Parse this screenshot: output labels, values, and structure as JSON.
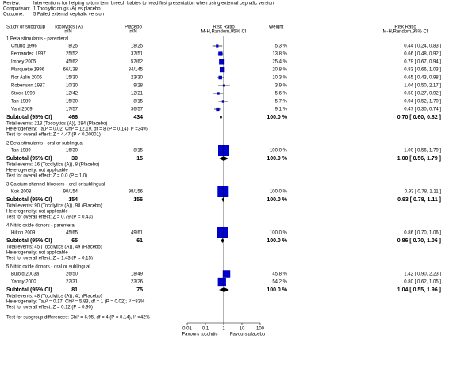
{
  "header": {
    "review_label": "Review:",
    "review": "Interventions for helping to turn term breech babies to head first presentation when using external cephalic version",
    "comparison_label": "Comparison:",
    "comparison": "1 Tocolytic drugs (A) vs placebo",
    "outcome_label": "Outcome:",
    "outcome": "5 Failed external cephalic version"
  },
  "columns": {
    "study": "Study or subgroup",
    "treatment": "Tocolytics (A)",
    "treatment_sub": "n/N",
    "control": "Placebo",
    "control_sub": "n/N",
    "plot": "Risk Ratio",
    "plot_sub": "M-H,Random,95% CI",
    "weight": "Weight",
    "effect": "Risk Ratio",
    "effect_sub": "M-H,Random,95% CI"
  },
  "groups": [
    {
      "label": "1 Beta stimulants - parenteral",
      "studies": [
        {
          "name": "Chung 1996",
          "treatment": "8/25",
          "control": "18/25",
          "weight": 5.3,
          "weight_label": "5.3 %",
          "rr": 0.44,
          "ci": [
            0.24,
            0.83
          ],
          "effect_label": "0.44 [ 0.24, 0.83 ]"
        },
        {
          "name": "Fernandez 1997",
          "treatment": "25/52",
          "control": "37/51",
          "weight": 13.8,
          "weight_label": "13.8 %",
          "rr": 0.66,
          "ci": [
            0.48,
            0.92
          ],
          "effect_label": "0.66 [ 0.48, 0.92 ]"
        },
        {
          "name": "Impey 2005",
          "treatment": "45/62",
          "control": "57/62",
          "weight": 25.4,
          "weight_label": "25.4 %",
          "rr": 0.79,
          "ci": [
            0.67,
            0.94
          ],
          "effect_label": "0.79 [ 0.67, 0.94 ]"
        },
        {
          "name": "Marquette 1996",
          "treatment": "66/138",
          "control": "84/145",
          "weight": 20.8,
          "weight_label": "20.8 %",
          "rr": 0.83,
          "ci": [
            0.66,
            1.03
          ],
          "effect_label": "0.83 [ 0.66, 1.03 ]"
        },
        {
          "name": "Nor Azlin 2005",
          "treatment": "15/30",
          "control": "23/30",
          "weight": 10.3,
          "weight_label": "10.3 %",
          "rr": 0.65,
          "ci": [
            0.43,
            0.98
          ],
          "effect_label": "0.65 [ 0.43, 0.98 ]"
        },
        {
          "name": "Robertson 1987",
          "treatment": "10/30",
          "control": "9/28",
          "weight": 3.9,
          "weight_label": "3.9 %",
          "rr": 1.04,
          "ci": [
            0.5,
            2.17
          ],
          "effect_label": "1.04 [ 0.50, 2.17 ]"
        },
        {
          "name": "Stock 1993",
          "treatment": "12/42",
          "control": "12/21",
          "weight": 5.6,
          "weight_label": "5.6 %",
          "rr": 0.5,
          "ci": [
            0.27,
            0.92
          ],
          "effect_label": "0.50 [ 0.27, 0.92 ]"
        },
        {
          "name": "Tan 1989",
          "treatment": "15/30",
          "control": "8/15",
          "weight": 5.7,
          "weight_label": "5.7 %",
          "rr": 0.94,
          "ci": [
            0.52,
            1.7
          ],
          "effect_label": "0.94 [ 0.52, 1.70 ]"
        },
        {
          "name": "Vani 2009",
          "treatment": "17/57",
          "control": "36/57",
          "weight": 9.1,
          "weight_label": "9.1 %",
          "rr": 0.47,
          "ci": [
            0.3,
            0.74
          ],
          "effect_label": "0.47 [ 0.30, 0.74 ]"
        }
      ],
      "subtotal": {
        "label": "Subtotal (95% CI)",
        "treatment": 466,
        "control": 434,
        "weight": 100,
        "weight_label": "100.0 %",
        "rr": 0.7,
        "ci": [
          0.6,
          0.82
        ],
        "effect_label": "0.70 [ 0.60, 0.82 ]"
      },
      "notes": [
        "Total events: 213 (Tocolytics (A)), 284 (Placebo)",
        "Heterogeneity: Tau² = 0.02; Chi² = 12.19, df = 8 (P = 0.14); I² =34%",
        "Test for overall effect: Z = 4.47 (P < 0.00001)"
      ]
    },
    {
      "label": "2 Beta stimulants - oral or sublingual",
      "studies": [
        {
          "name": "Tan 1989",
          "treatment": "16/30",
          "control": "8/15",
          "weight": 100,
          "weight_label": "100.0 %",
          "rr": 1.0,
          "ci": [
            0.56,
            1.79
          ],
          "effect_label": "1.00 [ 0.56, 1.79 ]"
        }
      ],
      "subtotal": {
        "label": "Subtotal (95% CI)",
        "treatment": 30,
        "control": 15,
        "weight": 100,
        "weight_label": "100.0 %",
        "rr": 1.0,
        "ci": [
          0.56,
          1.79
        ],
        "effect_label": "1.00 [ 0.56, 1.79 ]"
      },
      "notes": [
        "Total events: 16 (Tocolytics (A)), 8 (Placebo)",
        "Heterogeneity: not applicable",
        "Test for overall effect: Z = 0.0 (P = 1.0)"
      ]
    },
    {
      "label": "3 Calcium channel blockers - oral or sublingual",
      "studies": [
        {
          "name": "Kok 2008",
          "treatment": "90/154",
          "control": "98/156",
          "weight": 100,
          "weight_label": "100.0 %",
          "rr": 0.93,
          "ci": [
            0.78,
            1.11
          ],
          "effect_label": "0.93 [ 0.78, 1.11 ]"
        }
      ],
      "subtotal": {
        "label": "Subtotal (95% CI)",
        "treatment": 154,
        "control": 156,
        "weight": 100,
        "weight_label": "100.0 %",
        "rr": 0.93,
        "ci": [
          0.78,
          1.11
        ],
        "effect_label": "0.93 [ 0.78, 1.11 ]"
      },
      "notes": [
        "Total events: 90 (Tocolytics (A)), 98 (Placebo)",
        "Heterogeneity: not applicable",
        "Test for overall effect: Z = 0.79 (P = 0.43)"
      ]
    },
    {
      "label": "4 Nitric oxide donors - parenteral",
      "studies": [
        {
          "name": "Hilton 2009",
          "treatment": "45/65",
          "control": "49/61",
          "weight": 100,
          "weight_label": "100.0 %",
          "rr": 0.86,
          "ci": [
            0.7,
            1.06
          ],
          "effect_label": "0.86 [ 0.70, 1.06 ]"
        }
      ],
      "subtotal": {
        "label": "Subtotal (95% CI)",
        "treatment": 65,
        "control": 61,
        "weight": 100,
        "weight_label": "100.0 %",
        "rr": 0.86,
        "ci": [
          0.7,
          1.06
        ],
        "effect_label": "0.86 [ 0.70, 1.06 ]"
      },
      "notes": [
        "Total events: 45 (Tocolytics (A)), 49 (Placebo)",
        "Heterogeneity: not applicable",
        "Test for overall effect: Z = 1.43 (P = 0.15)"
      ]
    },
    {
      "label": "5 Nitric oxide donors - oral or sublingual",
      "studies": [
        {
          "name": "Bujold 2003a",
          "treatment": "26/50",
          "control": "18/49",
          "weight": 45.8,
          "weight_label": "45.8 %",
          "rr": 1.42,
          "ci": [
            0.9,
            2.23
          ],
          "effect_label": "1.42 [ 0.90, 2.23 ]"
        },
        {
          "name": "Yanny 2000",
          "treatment": "22/31",
          "control": "23/26",
          "weight": 54.2,
          "weight_label": "54.2 %",
          "rr": 0.8,
          "ci": [
            0.62,
            1.05
          ],
          "effect_label": "0.80 [ 0.62, 1.05 ]"
        }
      ],
      "subtotal": {
        "label": "Subtotal (95% CI)",
        "treatment": 81,
        "control": 75,
        "weight": 100,
        "weight_label": "100.0 %",
        "rr": 1.04,
        "ci": [
          0.55,
          1.96
        ],
        "effect_label": "1.04 [ 0.55, 1.96 ]"
      },
      "notes": [
        "Total events: 48 (Tocolytics (A)), 41 (Placebo)",
        "Heterogeneity: Tau² = 0.17; Chi² = 5.83, df = 1 (P = 0.02); I² =83%",
        "Test for overall effect: Z = 0.12 (P = 0.90)"
      ]
    }
  ],
  "footer": "Test for subgroup differences: Chi² = 6.95, df = 4 (P = 0.14), I² =42%",
  "axis": {
    "log": true,
    "xlim": [
      0.01,
      100
    ],
    "xticks": [
      0.01,
      0.1,
      1,
      10,
      100
    ],
    "reference": 1,
    "left_label": "Favours tocolytic",
    "right_label": "Favours placebo",
    "marker_color": "#0000cc"
  }
}
